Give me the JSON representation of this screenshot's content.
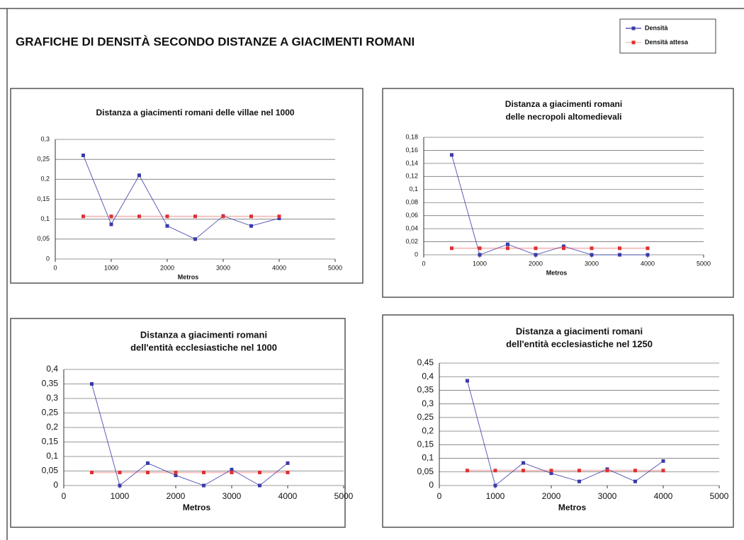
{
  "title": "GRAFICHE DI DENSITÀ SECONDO DISTANZE A GIACIMENTI ROMANI",
  "chart_data": [
    {
      "type": "line",
      "title": [
        "Distanza a giacimenti romani delle villae nel 1000"
      ],
      "xlabel": "Metros",
      "x": [
        500,
        1000,
        1500,
        2000,
        2500,
        3000,
        3500,
        4000
      ],
      "series": [
        {
          "name": "Densità",
          "color": "#3a3aa8",
          "values": [
            0.26,
            0.087,
            0.21,
            0.083,
            0.05,
            0.108,
            0.083,
            0.102
          ]
        },
        {
          "name": "Densità attesa",
          "color": "#e03030",
          "values": [
            0.107,
            0.107,
            0.107,
            0.107,
            0.107,
            0.107,
            0.107,
            0.107
          ]
        }
      ],
      "xlim": [
        0,
        5000
      ],
      "xticks": [
        0,
        1000,
        2000,
        3000,
        4000,
        5000
      ],
      "ylim": [
        0,
        0.3
      ],
      "yticks": [
        0,
        {
          "value": 0.05,
          "label": "0,05"
        },
        {
          "value": 0.1,
          "label": "0,1"
        },
        {
          "value": 0.15,
          "label": "0,15"
        },
        {
          "value": 0.2,
          "label": "0,2"
        },
        {
          "value": 0.25,
          "label": "0,25"
        },
        {
          "value": 0.3,
          "label": "0,3"
        }
      ],
      "grid": true
    },
    {
      "type": "line",
      "title": [
        "Distanza a giacimenti romani",
        "delle necropoli altomedievali"
      ],
      "xlabel": "Metros",
      "x": [
        500,
        1000,
        1500,
        2000,
        2500,
        3000,
        3500,
        4000
      ],
      "series": [
        {
          "color": "#3a3aa8",
          "values": [
            0.153,
            0,
            0.016,
            0,
            0.013,
            0,
            0,
            0
          ]
        },
        {
          "color": "#e03030",
          "values": [
            0.01,
            0.01,
            0.01,
            0.01,
            0.01,
            0.01,
            0.01,
            0.01
          ]
        }
      ],
      "xlim": [
        0,
        5000
      ],
      "xticks": [
        0,
        1000,
        2000,
        3000,
        4000,
        5000
      ],
      "ylim": [
        0,
        0.18
      ],
      "yticks": [
        0,
        {
          "value": 0.02,
          "label": "0,02"
        },
        {
          "value": 0.04,
          "label": "0,04"
        },
        {
          "value": 0.06,
          "label": "0,06"
        },
        {
          "value": 0.08,
          "label": "0,08"
        },
        {
          "value": 0.1,
          "label": "0,1"
        },
        {
          "value": 0.12,
          "label": "0,12"
        },
        {
          "value": 0.14,
          "label": "0,14"
        },
        {
          "value": 0.16,
          "label": "0,16"
        },
        {
          "value": 0.18,
          "label": "0,18"
        }
      ],
      "grid": true
    },
    {
      "type": "line",
      "title": [
        "Distanza a giacimenti romani",
        "dell'entità ecclesiastiche nel 1000"
      ],
      "xlabel": "Metros",
      "x": [
        500,
        1000,
        1500,
        2000,
        2500,
        3000,
        3500,
        4000
      ],
      "series": [
        {
          "color": "#3a3aa8",
          "values": [
            0.35,
            0,
            0.077,
            0.035,
            0,
            0.055,
            0,
            0.077
          ]
        },
        {
          "color": "#e03030",
          "values": [
            0.045,
            0.045,
            0.045,
            0.045,
            0.045,
            0.045,
            0.045,
            0.045
          ]
        }
      ],
      "xlim": [
        0,
        5000
      ],
      "xticks": [
        0,
        1000,
        2000,
        3000,
        4000,
        5000
      ],
      "ylim": [
        0,
        0.4
      ],
      "yticks": [
        0,
        {
          "value": 0.05,
          "label": "0,05"
        },
        {
          "value": 0.1,
          "label": "0,1"
        },
        {
          "value": 0.15,
          "label": "0,15"
        },
        {
          "value": 0.2,
          "label": "0,2"
        },
        {
          "value": 0.25,
          "label": "0,25"
        },
        {
          "value": 0.3,
          "label": "0,3"
        },
        {
          "value": 0.35,
          "label": "0,35"
        },
        {
          "value": 0.4,
          "label": "0,4"
        }
      ],
      "grid": true
    },
    {
      "type": "line",
      "title": [
        "Distanza a giacimenti romani",
        "dell'entità ecclesiastiche nel 1250"
      ],
      "xlabel": "Metros",
      "x": [
        500,
        1000,
        1500,
        2000,
        2500,
        3000,
        3500,
        4000
      ],
      "series": [
        {
          "color": "#3a3aa8",
          "values": [
            0.385,
            0,
            0.083,
            0.045,
            0.015,
            0.06,
            0.015,
            0.09
          ]
        },
        {
          "color": "#e03030",
          "values": [
            0.055,
            0.055,
            0.055,
            0.055,
            0.055,
            0.055,
            0.055,
            0.055
          ]
        }
      ],
      "xlim": [
        0,
        5000
      ],
      "xticks": [
        0,
        1000,
        2000,
        3000,
        4000,
        5000
      ],
      "ylim": [
        0,
        0.45
      ],
      "yticks": [
        0,
        {
          "value": 0.05,
          "label": "0,05"
        },
        {
          "value": 0.1,
          "label": "0,1"
        },
        {
          "value": 0.15,
          "label": "0,15"
        },
        {
          "value": 0.2,
          "label": "0,2"
        },
        {
          "value": 0.25,
          "label": "0,25"
        },
        {
          "value": 0.3,
          "label": "0,3"
        },
        {
          "value": 0.35,
          "label": "0,35"
        },
        {
          "value": 0.4,
          "label": "0,4"
        },
        {
          "value": 0.45,
          "label": "0,45"
        }
      ],
      "grid": true
    }
  ]
}
